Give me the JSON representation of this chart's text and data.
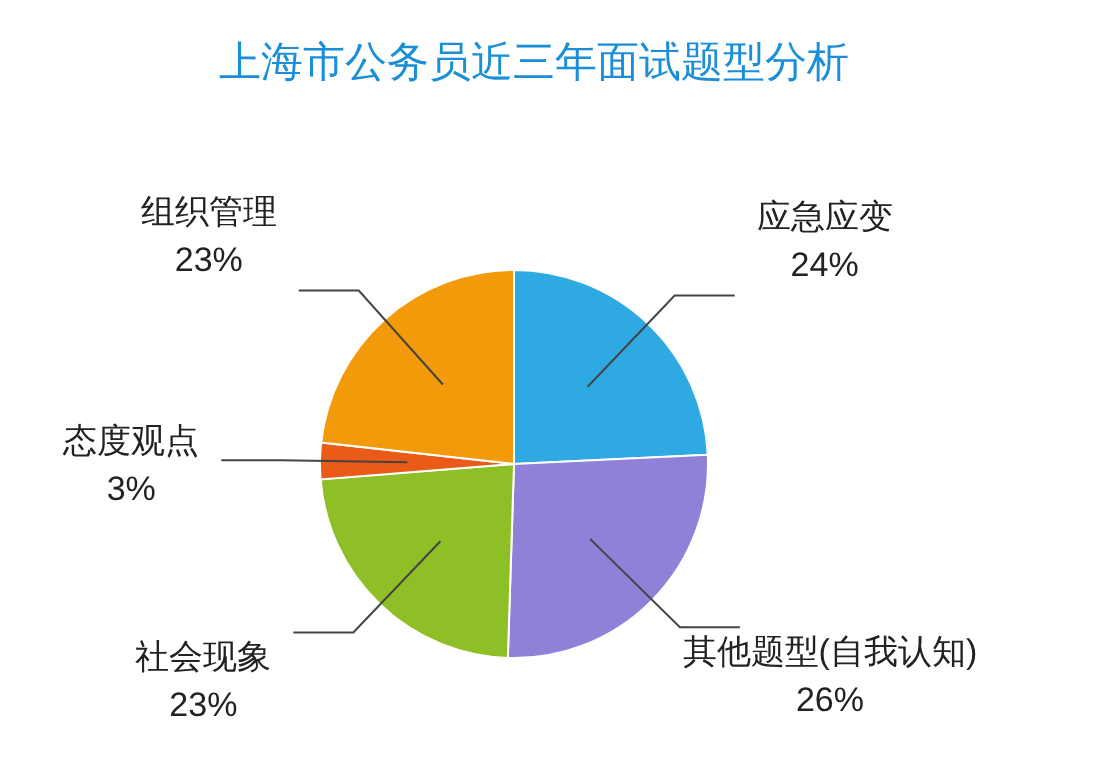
{
  "chart_data": {
    "type": "pie",
    "title": "上海市公务员近三年面试题型分析",
    "categories": [
      "应急应变",
      "其他题型(自我认知)",
      "社会现象",
      "态度观点",
      "组织管理"
    ],
    "values": [
      24,
      26,
      23,
      3,
      23
    ],
    "value_labels": [
      "24%",
      "26%",
      "23%",
      "3%",
      "23%"
    ],
    "colors": [
      "#2ea9e1",
      "#8f80d8",
      "#8fbf26",
      "#e95b17",
      "#f39a0a"
    ]
  }
}
